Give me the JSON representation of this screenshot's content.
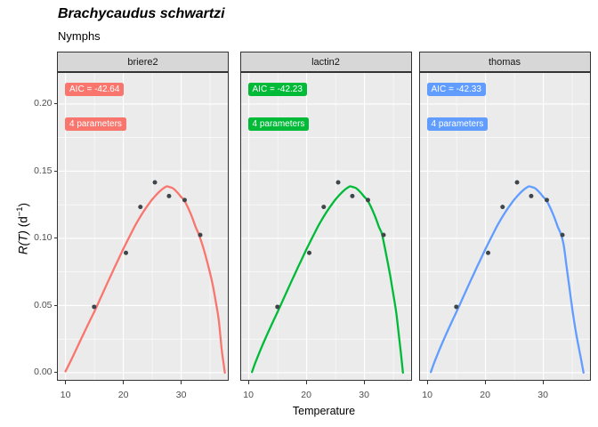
{
  "title": "Brachycaudus schwartzi",
  "subtitle": "Nymphs",
  "chart_data": {
    "type": "line+scatter",
    "facet_by": "model",
    "title": "Brachycaudus schwartzi",
    "subtitle": "Nymphs",
    "xlabel": "Temperature",
    "ylabel": "R(T) (d^-1)",
    "ylabel_parts": {
      "func": "R(T)",
      "unit_open": "(d",
      "sup": "−1",
      "unit_close": ")"
    },
    "xlim": [
      8.52,
      38.22
    ],
    "ylim": [
      -0.006,
      0.2238
    ],
    "x_ticks": {
      "values": [
        10,
        20,
        30
      ],
      "labels": [
        "10",
        "20",
        "30"
      ]
    },
    "y_ticks": {
      "values": [
        0,
        0.05,
        0.1,
        0.15,
        0.2
      ],
      "labels": [
        "0.00",
        "0.05",
        "0.10",
        "0.15",
        "0.20"
      ]
    },
    "x_minor": [
      15,
      25,
      35
    ],
    "y_minor": [
      0.025,
      0.075,
      0.125,
      0.175
    ],
    "grid": true,
    "legend": "none",
    "points": [
      [
        14.95,
        0.049
      ],
      [
        20.45,
        0.0892
      ],
      [
        22.95,
        0.1234
      ],
      [
        25.45,
        0.1417
      ],
      [
        27.9,
        0.1315
      ],
      [
        30.6,
        0.1285
      ],
      [
        33.3,
        0.1025
      ]
    ],
    "facets": [
      {
        "strip": "briere2",
        "color": "#F8766D",
        "aic_label": "AIC = -42.64",
        "params_label": "4 parameters",
        "curve": [
          [
            10,
            0.001
          ],
          [
            10.5,
            0.0053
          ],
          [
            11,
            0.0096
          ],
          [
            11.5,
            0.0141
          ],
          [
            12,
            0.0187
          ],
          [
            12.5,
            0.0233
          ],
          [
            13,
            0.0278
          ],
          [
            13.5,
            0.0323
          ],
          [
            14,
            0.0368
          ],
          [
            14.5,
            0.0412
          ],
          [
            15,
            0.0455
          ],
          [
            15.5,
            0.0502
          ],
          [
            16,
            0.055
          ],
          [
            16.5,
            0.0597
          ],
          [
            17,
            0.0645
          ],
          [
            17.5,
            0.0692
          ],
          [
            18,
            0.0738
          ],
          [
            18.5,
            0.0785
          ],
          [
            19,
            0.083
          ],
          [
            19.5,
            0.0876
          ],
          [
            20,
            0.0922
          ],
          [
            20.5,
            0.0965
          ],
          [
            21,
            0.1008
          ],
          [
            21.5,
            0.105
          ],
          [
            22,
            0.1092
          ],
          [
            22.5,
            0.113
          ],
          [
            23,
            0.1166
          ],
          [
            23.5,
            0.12
          ],
          [
            24,
            0.1232
          ],
          [
            24.5,
            0.1262
          ],
          [
            25,
            0.129
          ],
          [
            25.5,
            0.1315
          ],
          [
            26,
            0.1338
          ],
          [
            26.5,
            0.1358
          ],
          [
            27,
            0.1375
          ],
          [
            27.5,
            0.1387
          ],
          [
            28,
            0.1382
          ],
          [
            28.5,
            0.1375
          ],
          [
            29,
            0.1357
          ],
          [
            29.5,
            0.1334
          ],
          [
            30,
            0.1308
          ],
          [
            30.5,
            0.1285
          ],
          [
            31,
            0.1245
          ],
          [
            31.5,
            0.1198
          ],
          [
            32,
            0.1145
          ],
          [
            32.5,
            0.1085
          ],
          [
            33,
            0.1035
          ],
          [
            33.5,
            0.0975
          ],
          [
            34,
            0.0905
          ],
          [
            34.5,
            0.0825
          ],
          [
            35,
            0.074
          ],
          [
            35.5,
            0.0645
          ],
          [
            36,
            0.0525
          ],
          [
            36.5,
            0.0392
          ],
          [
            37,
            0.0175
          ],
          [
            37.3,
            0.008
          ],
          [
            37.55,
            0
          ]
        ]
      },
      {
        "strip": "lactin2",
        "color": "#00BA38",
        "aic_label": "AIC = -42.23",
        "params_label": "4 parameters",
        "curve": [
          [
            10.55,
            0.0005
          ],
          [
            11,
            0.006
          ],
          [
            11.5,
            0.0115
          ],
          [
            12,
            0.0168
          ],
          [
            12.5,
            0.0219
          ],
          [
            13,
            0.0268
          ],
          [
            13.5,
            0.0316
          ],
          [
            14,
            0.0363
          ],
          [
            14.5,
            0.0409
          ],
          [
            15,
            0.0455
          ],
          [
            15.5,
            0.0502
          ],
          [
            16,
            0.055
          ],
          [
            16.5,
            0.0597
          ],
          [
            17,
            0.0645
          ],
          [
            17.5,
            0.0692
          ],
          [
            18,
            0.0738
          ],
          [
            18.5,
            0.0785
          ],
          [
            19,
            0.083
          ],
          [
            19.5,
            0.0876
          ],
          [
            20,
            0.0922
          ],
          [
            20.5,
            0.0965
          ],
          [
            21,
            0.1008
          ],
          [
            21.5,
            0.105
          ],
          [
            22,
            0.1092
          ],
          [
            22.5,
            0.113
          ],
          [
            23,
            0.1166
          ],
          [
            23.5,
            0.12
          ],
          [
            24,
            0.1232
          ],
          [
            24.5,
            0.1262
          ],
          [
            25,
            0.129
          ],
          [
            25.5,
            0.1315
          ],
          [
            26,
            0.1338
          ],
          [
            26.5,
            0.1358
          ],
          [
            27,
            0.1375
          ],
          [
            27.5,
            0.1387
          ],
          [
            28,
            0.1382
          ],
          [
            28.5,
            0.1375
          ],
          [
            29,
            0.1357
          ],
          [
            29.5,
            0.1334
          ],
          [
            30,
            0.1308
          ],
          [
            30.5,
            0.1285
          ],
          [
            31,
            0.1245
          ],
          [
            31.5,
            0.1198
          ],
          [
            32,
            0.1145
          ],
          [
            32.5,
            0.1085
          ],
          [
            33,
            0.1035
          ],
          [
            33.5,
            0.0935
          ],
          [
            34,
            0.0825
          ],
          [
            34.5,
            0.071
          ],
          [
            35,
            0.058
          ],
          [
            35.5,
            0.0445
          ],
          [
            36,
            0.0258
          ],
          [
            36.3,
            0.0145
          ],
          [
            36.65,
            0
          ]
        ]
      },
      {
        "strip": "thomas",
        "color": "#619CFF",
        "aic_label": "AIC = -42.33",
        "params_label": "4 parameters",
        "curve": [
          [
            10.55,
            0.0005
          ],
          [
            11,
            0.006
          ],
          [
            11.5,
            0.0115
          ],
          [
            12,
            0.0168
          ],
          [
            12.5,
            0.0219
          ],
          [
            13,
            0.0268
          ],
          [
            13.5,
            0.0316
          ],
          [
            14,
            0.0363
          ],
          [
            14.5,
            0.0409
          ],
          [
            15,
            0.0455
          ],
          [
            15.5,
            0.0502
          ],
          [
            16,
            0.055
          ],
          [
            16.5,
            0.0597
          ],
          [
            17,
            0.0645
          ],
          [
            17.5,
            0.0692
          ],
          [
            18,
            0.0738
          ],
          [
            18.5,
            0.0785
          ],
          [
            19,
            0.083
          ],
          [
            19.5,
            0.0876
          ],
          [
            20,
            0.0922
          ],
          [
            20.5,
            0.0965
          ],
          [
            21,
            0.1008
          ],
          [
            21.5,
            0.105
          ],
          [
            22,
            0.1092
          ],
          [
            22.5,
            0.113
          ],
          [
            23,
            0.1166
          ],
          [
            23.5,
            0.12
          ],
          [
            24,
            0.1232
          ],
          [
            24.5,
            0.1262
          ],
          [
            25,
            0.129
          ],
          [
            25.5,
            0.1315
          ],
          [
            26,
            0.1338
          ],
          [
            26.5,
            0.1358
          ],
          [
            27,
            0.1375
          ],
          [
            27.5,
            0.1387
          ],
          [
            28,
            0.1382
          ],
          [
            28.5,
            0.1375
          ],
          [
            29,
            0.1357
          ],
          [
            29.5,
            0.1334
          ],
          [
            30,
            0.1308
          ],
          [
            30.5,
            0.1285
          ],
          [
            31,
            0.1245
          ],
          [
            31.5,
            0.1198
          ],
          [
            32,
            0.1145
          ],
          [
            32.5,
            0.1085
          ],
          [
            33,
            0.1035
          ],
          [
            33.5,
            0.0955
          ],
          [
            34,
            0.0795
          ],
          [
            34.5,
            0.0635
          ],
          [
            35,
            0.0475
          ],
          [
            35.5,
            0.0335
          ],
          [
            36,
            0.0215
          ],
          [
            36.5,
            0.0105
          ],
          [
            36.95,
            0
          ]
        ]
      }
    ],
    "colors": {
      "panel_bg": "#EBEBEB",
      "grid": "#FFFFFF",
      "strip_bg": "#D7D7D7",
      "border": "#333333",
      "tick_label": "#4D4D4D",
      "point": "#3F464B"
    }
  }
}
